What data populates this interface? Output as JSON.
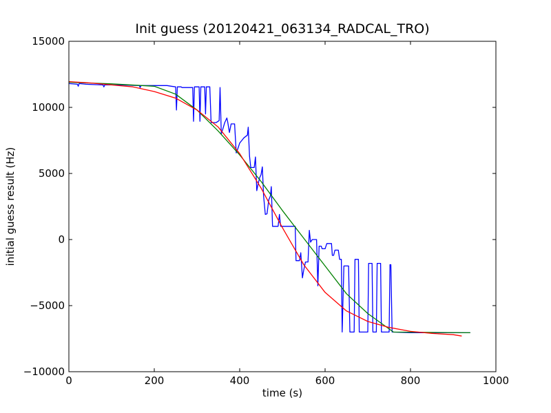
{
  "chart_data": {
    "type": "line",
    "title": "Init guess (20120421_063134_RADCAL_TRO)",
    "xlabel": "time (s)",
    "ylabel": "initial guess result (Hz)",
    "xlim": [
      0,
      1000
    ],
    "ylim": [
      -10000,
      15000
    ],
    "xticks": [
      0,
      200,
      400,
      600,
      800,
      1000
    ],
    "yticks": [
      -10000,
      -5000,
      0,
      5000,
      10000,
      15000
    ],
    "xtick_labels": [
      "0",
      "200",
      "400",
      "600",
      "800",
      "1000"
    ],
    "ytick_labels": [
      "−10000",
      "−5000",
      "0",
      "5000",
      "10000",
      "15000"
    ],
    "grid": false,
    "series": [
      {
        "color": "#0000ff",
        "points": [
          [
            0,
            11800
          ],
          [
            20,
            11750
          ],
          [
            22,
            11600
          ],
          [
            24,
            11800
          ],
          [
            40,
            11750
          ],
          [
            80,
            11700
          ],
          [
            82,
            11550
          ],
          [
            84,
            11700
          ],
          [
            120,
            11700
          ],
          [
            165,
            11650
          ],
          [
            167,
            11500
          ],
          [
            169,
            11650
          ],
          [
            230,
            11650
          ],
          [
            240,
            11600
          ],
          [
            250,
            11550
          ],
          [
            252,
            9800
          ],
          [
            254,
            11550
          ],
          [
            263,
            11550
          ],
          [
            265,
            11500
          ],
          [
            290,
            11500
          ],
          [
            292,
            8950
          ],
          [
            294,
            11550
          ],
          [
            305,
            11550
          ],
          [
            307,
            8950
          ],
          [
            309,
            11550
          ],
          [
            318,
            11550
          ],
          [
            320,
            9500
          ],
          [
            322,
            11550
          ],
          [
            330,
            11550
          ],
          [
            333,
            8850
          ],
          [
            345,
            8850
          ],
          [
            352,
            9000
          ],
          [
            354,
            11500
          ],
          [
            357,
            8000
          ],
          [
            360,
            8300
          ],
          [
            365,
            8850
          ],
          [
            370,
            9200
          ],
          [
            372,
            8900
          ],
          [
            376,
            8100
          ],
          [
            380,
            8750
          ],
          [
            388,
            8750
          ],
          [
            392,
            6550
          ],
          [
            396,
            6900
          ],
          [
            400,
            7300
          ],
          [
            405,
            7500
          ],
          [
            410,
            7700
          ],
          [
            418,
            7900
          ],
          [
            420,
            8500
          ],
          [
            423,
            6300
          ],
          [
            426,
            5450
          ],
          [
            434,
            5450
          ],
          [
            437,
            6250
          ],
          [
            440,
            3700
          ],
          [
            443,
            4200
          ],
          [
            447,
            4700
          ],
          [
            450,
            4900
          ],
          [
            453,
            5500
          ],
          [
            456,
            3300
          ],
          [
            460,
            1900
          ],
          [
            464,
            1950
          ],
          [
            468,
            3000
          ],
          [
            472,
            3300
          ],
          [
            474,
            4000
          ],
          [
            477,
            1000
          ],
          [
            490,
            1000
          ],
          [
            493,
            1900
          ],
          [
            496,
            1000
          ],
          [
            530,
            1000
          ],
          [
            532,
            -1600
          ],
          [
            540,
            -1600
          ],
          [
            543,
            -1000
          ],
          [
            547,
            -2900
          ],
          [
            550,
            -2300
          ],
          [
            554,
            -1700
          ],
          [
            560,
            -1700
          ],
          [
            563,
            700
          ],
          [
            566,
            -200
          ],
          [
            570,
            0
          ],
          [
            576,
            0
          ],
          [
            580,
            0
          ],
          [
            583,
            -3500
          ],
          [
            586,
            -500
          ],
          [
            591,
            -500
          ],
          [
            593,
            -700
          ],
          [
            600,
            -700
          ],
          [
            604,
            -300
          ],
          [
            608,
            -300
          ],
          [
            615,
            -300
          ],
          [
            617,
            -1200
          ],
          [
            620,
            -1200
          ],
          [
            623,
            -800
          ],
          [
            626,
            -800
          ],
          [
            631,
            -800
          ],
          [
            634,
            -1500
          ],
          [
            638,
            -1500
          ],
          [
            640,
            -7000
          ],
          [
            644,
            -2000
          ],
          [
            655,
            -2000
          ],
          [
            658,
            -7000
          ],
          [
            668,
            -7000
          ],
          [
            670,
            -1500
          ],
          [
            678,
            -1500
          ],
          [
            680,
            -7000
          ],
          [
            700,
            -7000
          ],
          [
            702,
            -1800
          ],
          [
            710,
            -1800
          ],
          [
            712,
            -7000
          ],
          [
            720,
            -7000
          ],
          [
            722,
            -1800
          ],
          [
            730,
            -1800
          ],
          [
            732,
            -7000
          ],
          [
            750,
            -7000
          ],
          [
            752,
            -1900
          ],
          [
            754,
            -1900
          ],
          [
            757,
            -7000
          ],
          [
            800,
            -7050
          ],
          [
            880,
            -7050
          ],
          [
            940,
            -7050
          ]
        ]
      },
      {
        "color": "#008000",
        "points": [
          [
            0,
            11900
          ],
          [
            100,
            11780
          ],
          [
            200,
            11600
          ],
          [
            250,
            11000
          ],
          [
            300,
            9800
          ],
          [
            350,
            8200
          ],
          [
            400,
            6400
          ],
          [
            450,
            4400
          ],
          [
            500,
            2200
          ],
          [
            550,
            100
          ],
          [
            600,
            -2000
          ],
          [
            650,
            -4100
          ],
          [
            700,
            -5600
          ],
          [
            760,
            -7000
          ],
          [
            940,
            -7050
          ]
        ]
      },
      {
        "color": "#ff0000",
        "points": [
          [
            0,
            11950
          ],
          [
            50,
            11850
          ],
          [
            100,
            11700
          ],
          [
            150,
            11550
          ],
          [
            200,
            11200
          ],
          [
            250,
            10700
          ],
          [
            300,
            9800
          ],
          [
            350,
            8500
          ],
          [
            400,
            6500
          ],
          [
            450,
            3900
          ],
          [
            500,
            900
          ],
          [
            550,
            -1900
          ],
          [
            600,
            -4000
          ],
          [
            650,
            -5400
          ],
          [
            700,
            -6200
          ],
          [
            750,
            -6650
          ],
          [
            800,
            -6950
          ],
          [
            850,
            -7100
          ],
          [
            900,
            -7200
          ],
          [
            920,
            -7300
          ]
        ]
      }
    ]
  }
}
